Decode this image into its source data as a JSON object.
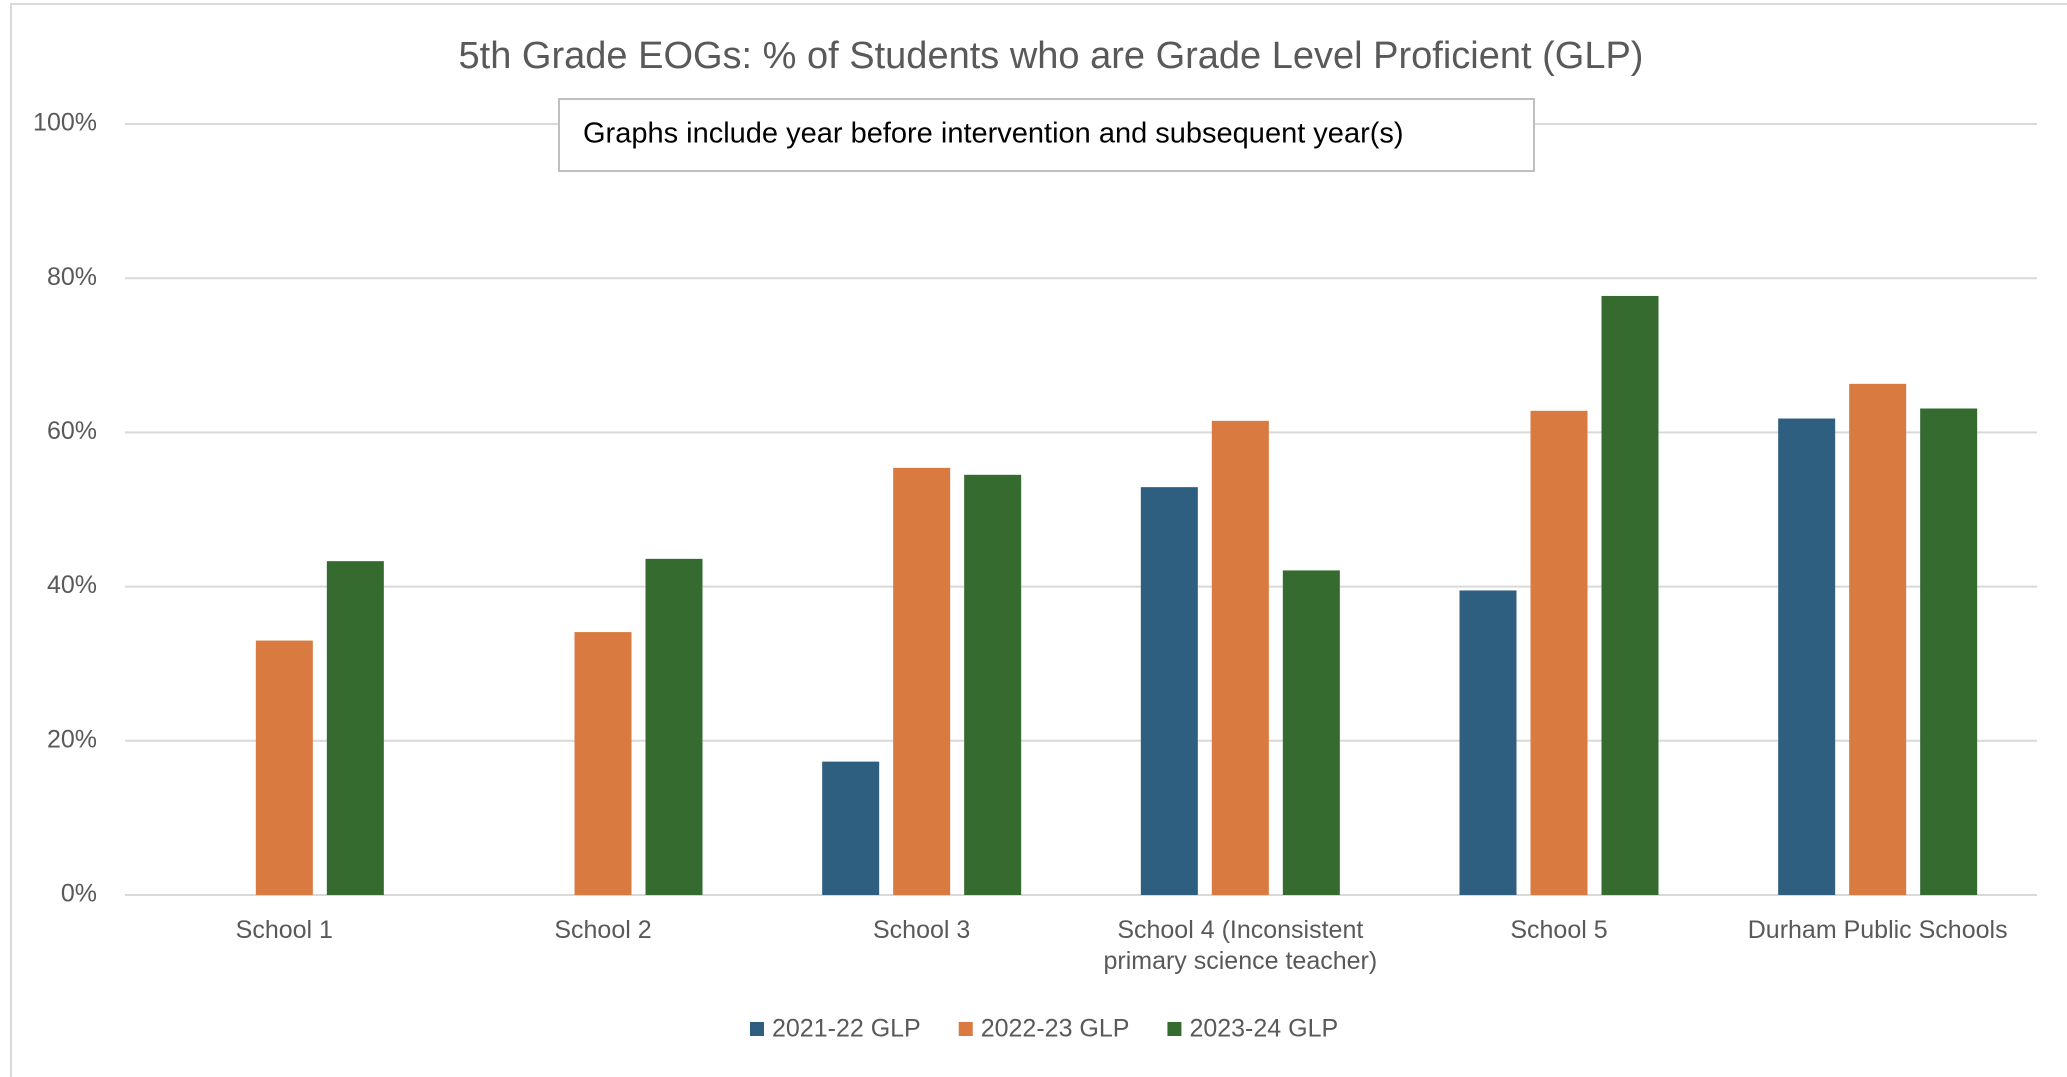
{
  "chart_data": {
    "type": "bar",
    "title": "5th Grade EOGs: % of Students who are Grade Level Proficient (GLP)",
    "annotation": "Graphs include year before intervention and subsequent year(s)",
    "categories": [
      "School 1",
      "School 2",
      "School 3",
      "School 4 (Inconsistent primary science teacher)",
      "School 5",
      "Durham Public Schools"
    ],
    "series": [
      {
        "name": "2021-22 GLP",
        "color": "#2e5f80",
        "values": [
          null,
          null,
          17.3,
          52.9,
          39.5,
          61.8
        ]
      },
      {
        "name": "2022-23 GLP",
        "color": "#d97a40",
        "values": [
          33.0,
          34.1,
          55.4,
          61.5,
          62.8,
          66.3
        ]
      },
      {
        "name": "2023-24 GLP",
        "color": "#356b2f",
        "values": [
          43.3,
          43.6,
          54.5,
          42.1,
          77.7,
          63.1
        ]
      }
    ],
    "ylim": [
      0,
      100
    ],
    "yticks": [
      {
        "value": 0,
        "label": "0%"
      },
      {
        "value": 20,
        "label": "20%"
      },
      {
        "value": 40,
        "label": "40%"
      },
      {
        "value": 60,
        "label": "60%"
      },
      {
        "value": 80,
        "label": "80%"
      },
      {
        "value": 100,
        "label": "100%"
      }
    ],
    "grid": true,
    "legend": "bottom"
  }
}
